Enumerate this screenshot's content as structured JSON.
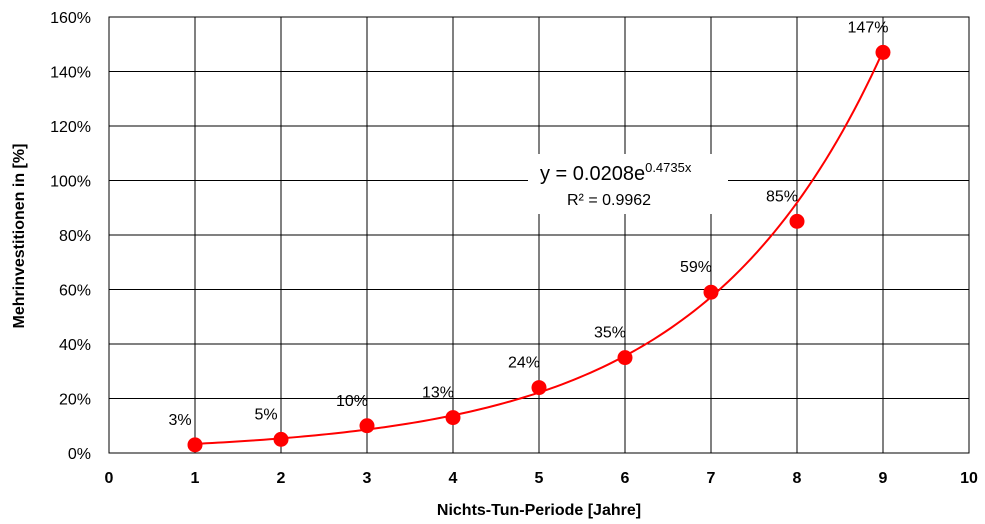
{
  "chart_data": {
    "type": "scatter",
    "x_label": "Nichts-Tun-Periode  [Jahre]",
    "y_label": "Mehrinvestitionen  in [%]",
    "x_range": [
      0,
      10
    ],
    "y_range": [
      0,
      160
    ],
    "x_ticks": [
      0,
      1,
      2,
      3,
      4,
      5,
      6,
      7,
      8,
      9,
      10
    ],
    "y_ticks": [
      0,
      20,
      40,
      60,
      80,
      100,
      120,
      140,
      160
    ],
    "y_tick_labels": [
      "0%",
      "20%",
      "40%",
      "60%",
      "80%",
      "100%",
      "120%",
      "140%",
      "160%"
    ],
    "grid": true,
    "series": [
      {
        "x": [
          1,
          2,
          3,
          4,
          5,
          6,
          7,
          8,
          9
        ],
        "y": [
          3,
          5,
          10,
          13,
          24,
          35,
          59,
          85,
          147
        ],
        "data_labels": [
          "3%",
          "5%",
          "10%",
          "13%",
          "24%",
          "35%",
          "59%",
          "85%",
          "147%"
        ],
        "color": "#ff0000"
      }
    ],
    "trendline": {
      "type": "exponential",
      "a": 0.0208,
      "b": 0.4735,
      "equation_base": "y = 0.0208e",
      "equation_exponent": "0.4735x",
      "r_squared_label": "R² = 0.9962",
      "color": "#ff0000"
    }
  }
}
